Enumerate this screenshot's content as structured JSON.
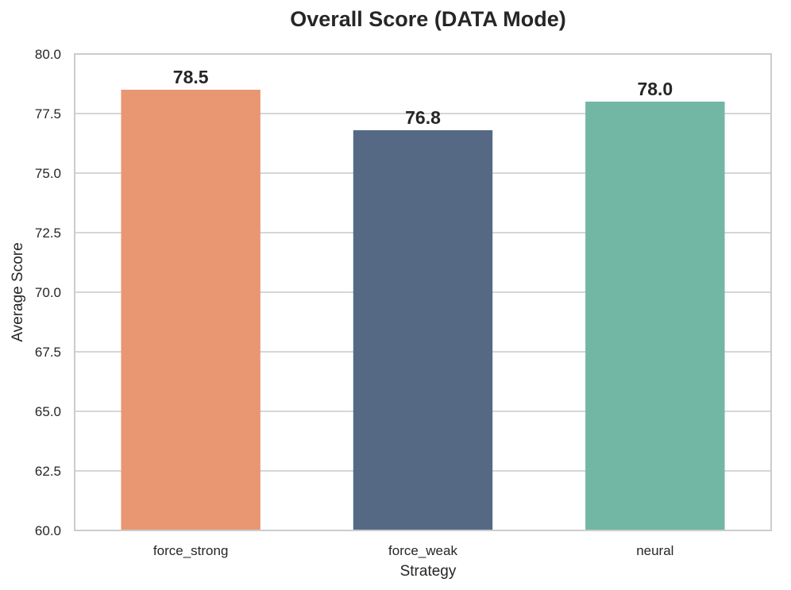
{
  "chart_data": {
    "type": "bar",
    "title": "Overall Score (DATA Mode)",
    "xlabel": "Strategy",
    "ylabel": "Average Score",
    "categories": [
      "force_strong",
      "force_weak",
      "neural"
    ],
    "values": [
      78.5,
      76.8,
      78.0
    ],
    "value_labels": [
      "78.5",
      "76.8",
      "78.0"
    ],
    "colors": [
      "#e99673",
      "#556985",
      "#72b6a4"
    ],
    "ylim": [
      60.0,
      80.0
    ],
    "yticks": [
      "60.0",
      "62.5",
      "65.0",
      "67.5",
      "70.0",
      "72.5",
      "75.0",
      "77.5",
      "80.0"
    ],
    "grid": true,
    "legend": "none"
  }
}
